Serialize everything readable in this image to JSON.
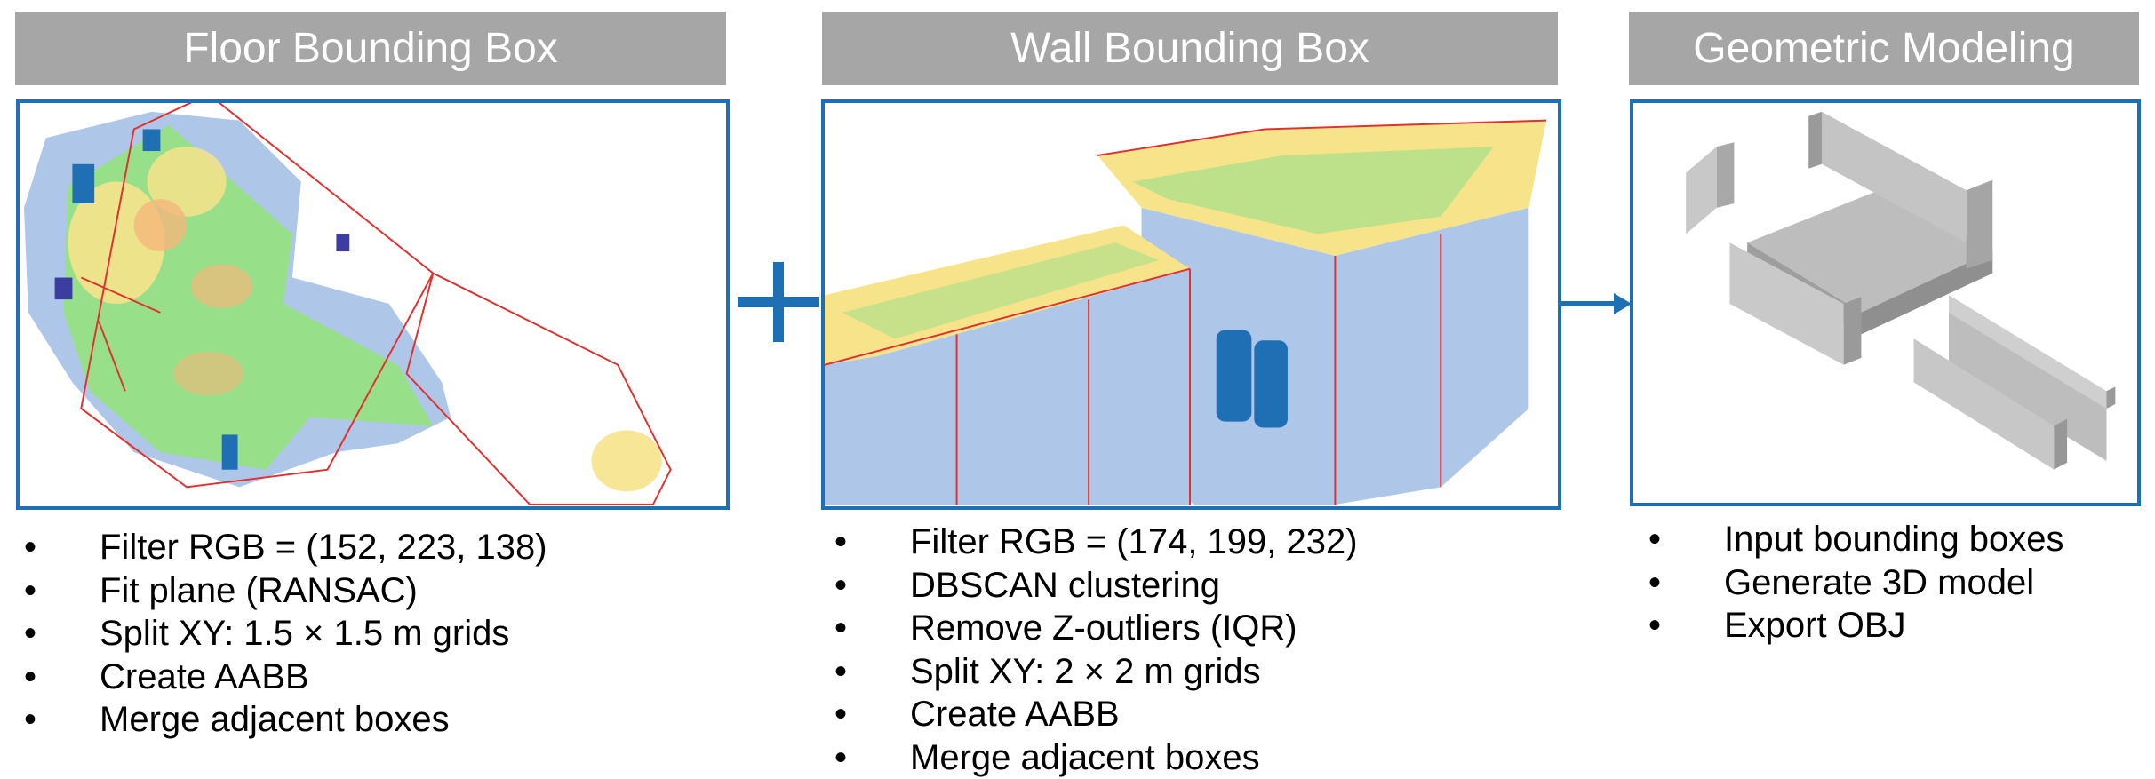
{
  "colors": {
    "header_bg": "#a6a6a6",
    "panel_border": "#1f6fb5",
    "floor_green": "#98df8a",
    "wall_blue": "#aec7e8",
    "accent_blue": "#1f6fb5"
  },
  "columns": [
    {
      "title": "Floor Bounding Box",
      "bullet_symbol": "•",
      "bullets": [
        "Filter RGB = (152, 223, 138)",
        "Fit plane (RANSAC)",
        "Split XY: 1.5 × 1.5 m grids",
        "Create AABB",
        "Merge adjacent boxes"
      ]
    },
    {
      "title": "Wall Bounding Box",
      "bullet_symbol": "•",
      "bullets": [
        "Filter RGB = (174, 199, 232)",
        "DBSCAN clustering",
        "Remove Z-outliers (IQR)",
        "Split XY: 2 × 2 m grids",
        "Create AABB",
        "Merge adjacent boxes"
      ]
    },
    {
      "title": "Geometric Modeling",
      "bullet_symbol": "•",
      "bullets": [
        "Input bounding boxes",
        "Generate 3D model",
        "Export OBJ"
      ]
    }
  ],
  "connectors": {
    "plus_icon": "plus-icon",
    "arrow_icon": "arrow-right-icon"
  }
}
